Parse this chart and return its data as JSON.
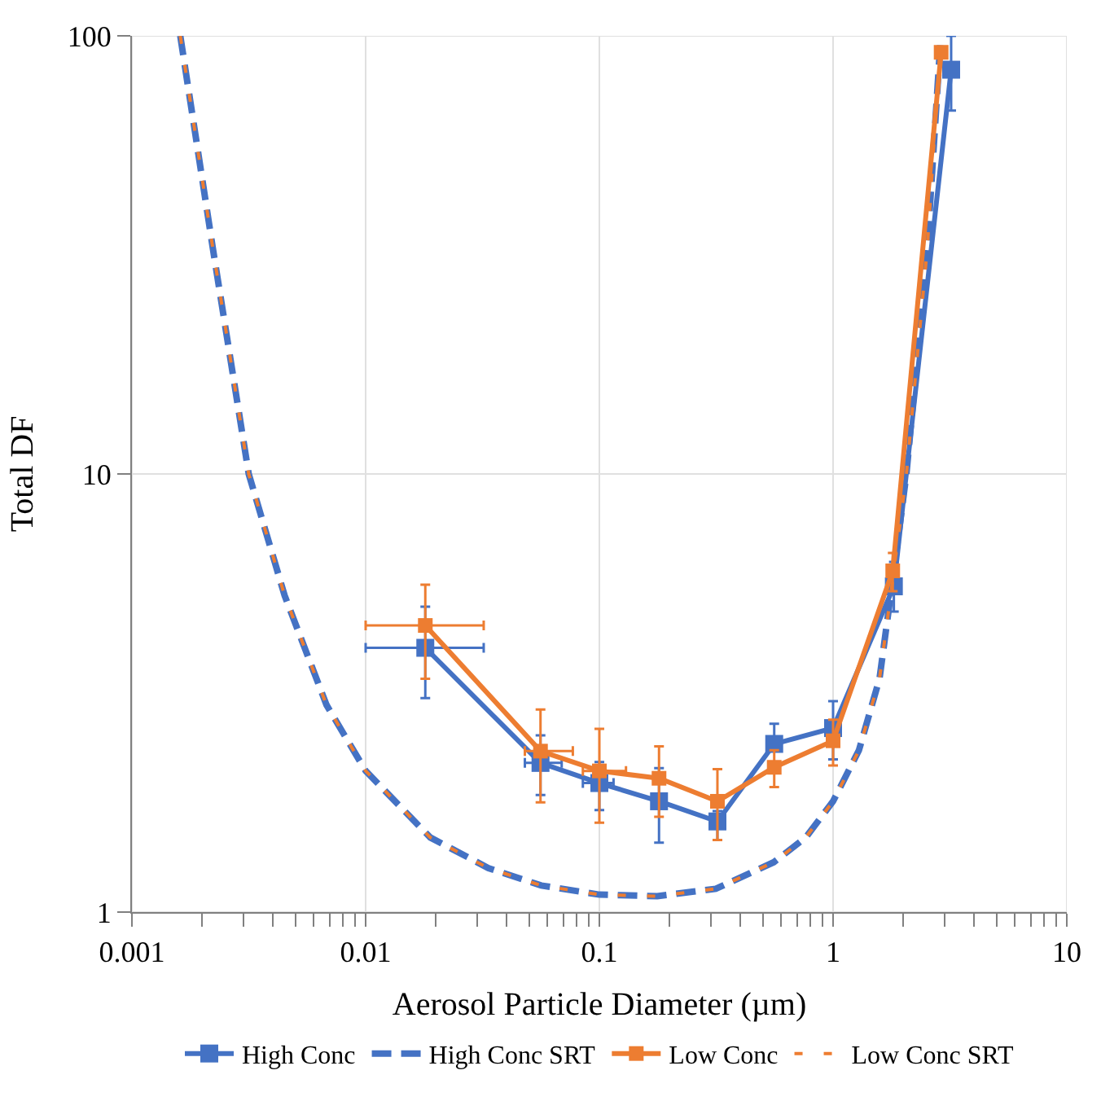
{
  "chart_data": {
    "type": "line",
    "xlabel": "Aerosol Particle Diameter (µm)",
    "ylabel": "Total DF",
    "log": "xy",
    "grid": true,
    "legend": "bottom",
    "xlim": [
      0.001,
      10
    ],
    "ylim": [
      1,
      100
    ],
    "xticks": [
      0.001,
      {
        "value": 0.002,
        "label": null
      },
      {
        "value": 0.003,
        "label": null
      },
      {
        "value": 0.004,
        "label": null
      },
      {
        "value": 0.005,
        "label": null
      },
      {
        "value": 0.006,
        "label": null
      },
      {
        "value": 0.007,
        "label": null
      },
      {
        "value": 0.008,
        "label": null
      },
      {
        "value": 0.009,
        "label": null
      },
      0.01,
      {
        "value": 0.02,
        "label": null
      },
      {
        "value": 0.03,
        "label": null
      },
      {
        "value": 0.04,
        "label": null
      },
      {
        "value": 0.05,
        "label": null
      },
      {
        "value": 0.06,
        "label": null
      },
      {
        "value": 0.07,
        "label": null
      },
      {
        "value": 0.08,
        "label": null
      },
      {
        "value": 0.09,
        "label": null
      },
      0.1,
      {
        "value": 0.2,
        "label": null
      },
      {
        "value": 0.3,
        "label": null
      },
      {
        "value": 0.4,
        "label": null
      },
      {
        "value": 0.5,
        "label": null
      },
      {
        "value": 0.6,
        "label": null
      },
      {
        "value": 0.7,
        "label": null
      },
      {
        "value": 0.8,
        "label": null
      },
      {
        "value": 0.9,
        "label": null
      },
      1,
      {
        "value": 2,
        "label": null
      },
      {
        "value": 3,
        "label": null
      },
      {
        "value": 4,
        "label": null
      },
      {
        "value": 5,
        "label": null
      },
      {
        "value": 6,
        "label": null
      },
      {
        "value": 7,
        "label": null
      },
      {
        "value": 8,
        "label": null
      },
      {
        "value": 9,
        "label": null
      },
      10
    ],
    "yticks": [
      1,
      10,
      100
    ],
    "series": [
      {
        "name": "High Conc",
        "color": "#4472c4",
        "marker": "square",
        "line_style": "solid",
        "x": [
          0.018,
          0.056,
          0.1,
          0.18,
          0.32,
          0.56,
          1,
          1.82,
          3.2
        ],
        "values": [
          4.01,
          2.19,
          1.97,
          1.79,
          1.61,
          2.42,
          2.63,
          5.54,
          83.7
        ],
        "errors": [
          [
            3.08,
            4.98
          ],
          [
            1.85,
            2.53
          ],
          [
            1.71,
            2.2
          ],
          [
            1.44,
            2.13
          ],
          [
            1.46,
            1.7
          ],
          [
            2.42,
            2.69
          ],
          [
            2.23,
            3.03
          ],
          [
            4.85,
            6.3
          ],
          [
            67.5,
            100
          ]
        ],
        "xerrors": [
          [
            0.01,
            0.032
          ],
          [
            0.048,
            0.069
          ],
          [
            0.085,
            0.115
          ],
          null,
          null,
          null,
          null,
          null,
          null
        ]
      },
      {
        "name": "High Conc SRT",
        "color": "#4472c4",
        "marker": "none",
        "line_style": "dashed",
        "x": [
          0.00161,
          0.00222,
          0.00316,
          0.0045,
          0.0068,
          0.01,
          0.0189,
          0.0335,
          0.0564,
          0.1,
          0.177,
          0.315,
          0.558,
          0.764,
          1,
          1.29,
          1.58,
          1.76,
          2.06,
          2.53,
          2.89
        ],
        "values": [
          100,
          32.7,
          10,
          5.28,
          2.97,
          2.1,
          1.48,
          1.26,
          1.15,
          1.096,
          1.087,
          1.13,
          1.3,
          1.48,
          1.79,
          2.34,
          3.41,
          5.25,
          10,
          32.8,
          100
        ]
      },
      {
        "name": "Low Conc",
        "color": "#ed7d31",
        "marker": "square",
        "line_style": "solid",
        "x": [
          0.018,
          0.056,
          0.1,
          0.18,
          0.32,
          0.56,
          1,
          1.8,
          2.9
        ],
        "values": [
          4.51,
          2.33,
          2.1,
          2.02,
          1.79,
          2.14,
          2.46,
          6.01,
          91.7
        ],
        "errors": [
          [
            3.41,
            5.59
          ],
          [
            1.78,
            2.9
          ],
          [
            1.6,
            2.62
          ],
          [
            1.65,
            2.39
          ],
          [
            1.46,
            2.12
          ],
          [
            1.93,
            2.34
          ],
          [
            2.16,
            2.75
          ],
          [
            5.4,
            6.6
          ],
          null
        ],
        "xerrors": [
          [
            0.01,
            0.032
          ],
          [
            0.048,
            0.077
          ],
          [
            0.085,
            0.13
          ],
          null,
          null,
          null,
          null,
          null,
          null
        ]
      },
      {
        "name": "Low Conc SRT",
        "color": "#ed7d31",
        "marker": "none",
        "line_style": "dashed",
        "x": [
          0.00161,
          0.00222,
          0.00316,
          0.0045,
          0.0068,
          0.01,
          0.0189,
          0.0335,
          0.0564,
          0.1,
          0.177,
          0.315,
          0.558,
          0.764,
          1,
          1.29,
          1.58,
          1.76,
          2.06,
          2.53,
          2.89
        ],
        "values": [
          100,
          32.7,
          10,
          5.28,
          2.97,
          2.1,
          1.48,
          1.26,
          1.15,
          1.096,
          1.087,
          1.13,
          1.3,
          1.48,
          1.79,
          2.34,
          3.41,
          5.25,
          10,
          32.8,
          100
        ]
      }
    ]
  }
}
